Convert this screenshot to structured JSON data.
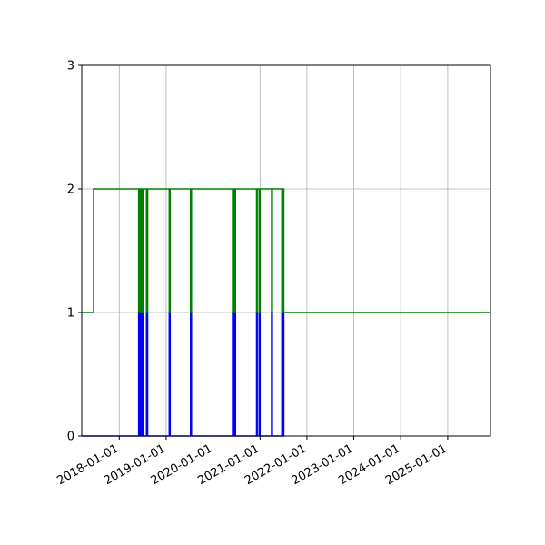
{
  "chart_data": {
    "type": "line",
    "title": "",
    "xlabel": "",
    "ylabel": "",
    "x_scale": "date",
    "xlim": [
      "2017-03-15",
      "2025-11-30"
    ],
    "ylim": [
      0,
      3
    ],
    "grid": true,
    "x_ticks": [
      "2018-01-01",
      "2019-01-01",
      "2020-01-01",
      "2021-01-01",
      "2022-01-01",
      "2023-01-01",
      "2024-01-01",
      "2025-01-01"
    ],
    "y_ticks": [
      "0",
      "1",
      "2",
      "3"
    ],
    "series": [
      {
        "color": "#0000ff",
        "step": "post",
        "x": [
          "2017-03-15",
          "2018-06-01",
          "2018-06-04",
          "2018-06-08",
          "2018-06-12",
          "2018-06-16",
          "2018-06-20",
          "2018-06-24",
          "2018-06-28",
          "2018-07-02",
          "2018-07-06",
          "2018-08-01",
          "2018-08-10",
          "2019-01-25",
          "2019-02-01",
          "2019-07-10",
          "2019-07-17",
          "2020-06-01",
          "2020-06-05",
          "2020-06-10",
          "2020-06-14",
          "2020-06-20",
          "2020-06-24",
          "2020-12-05",
          "2020-12-10",
          "2020-12-25",
          "2021-01-01",
          "2021-04-01",
          "2021-04-07",
          "2021-06-20",
          "2021-06-25",
          "2021-07-05",
          "2021-07-10"
        ],
        "y": [
          0,
          1,
          0,
          1,
          0,
          1,
          0,
          1,
          0,
          1,
          0,
          1,
          0,
          1,
          0,
          1,
          0,
          1,
          0,
          1,
          0,
          1,
          0,
          1,
          0,
          1,
          0,
          1,
          0,
          1,
          0,
          1,
          1
        ]
      },
      {
        "color": "#008000",
        "step": "post",
        "x": [
          "2017-03-15",
          "2017-06-15",
          "2018-06-01",
          "2018-06-04",
          "2018-06-08",
          "2018-06-12",
          "2018-06-16",
          "2018-06-20",
          "2018-06-24",
          "2018-06-28",
          "2018-07-02",
          "2018-07-06",
          "2018-08-01",
          "2018-08-10",
          "2019-01-25",
          "2019-02-01",
          "2019-07-10",
          "2019-07-17",
          "2020-06-01",
          "2020-06-05",
          "2020-06-10",
          "2020-06-14",
          "2020-06-20",
          "2020-06-24",
          "2020-12-05",
          "2020-12-10",
          "2020-12-25",
          "2021-01-01",
          "2021-04-01",
          "2021-04-07",
          "2021-06-20",
          "2021-06-25",
          "2021-07-05",
          "2021-07-10",
          "2025-11-30"
        ],
        "y": [
          1,
          2,
          1,
          2,
          1,
          2,
          1,
          2,
          1,
          2,
          1,
          2,
          1,
          2,
          1,
          2,
          1,
          2,
          1,
          2,
          1,
          2,
          1,
          2,
          1,
          2,
          1,
          2,
          1,
          2,
          1,
          2,
          1,
          1,
          1
        ]
      }
    ]
  }
}
